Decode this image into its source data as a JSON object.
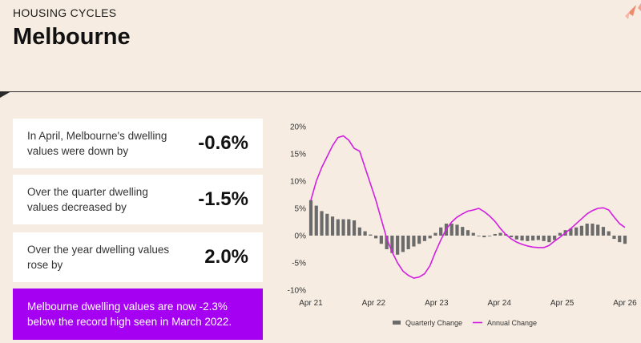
{
  "header": {
    "eyebrow": "HOUSING CYCLES",
    "title": "Melbourne"
  },
  "cards": [
    {
      "label": "In April, Melbourne's dwelling values were down by",
      "value": "-0.6%"
    },
    {
      "label": "Over the quarter dwelling values decreased by",
      "value": "-1.5%"
    },
    {
      "label": "Over the year dwelling values rose by",
      "value": "2.0%"
    }
  ],
  "banner": {
    "text": "Melbourne dwelling values are now -2.3% below the record high seen in March 2022."
  },
  "colors": {
    "background": "#f6ece1",
    "banner": "#a600f2",
    "quarterly": "#6b6b6b",
    "annual": "#d21fe0",
    "deco": "#f08a70"
  },
  "chart_data": {
    "type": "bar",
    "x_tick_labels": [
      "Apr 21",
      "Apr 22",
      "Apr 23",
      "Apr 24",
      "Apr 25",
      "Apr 26"
    ],
    "y_tick_labels": [
      "20%",
      "15%",
      "10%",
      "5%",
      "0%",
      "-5%",
      "-10%"
    ],
    "ylim": [
      -10,
      20
    ],
    "grid": false,
    "legend_position": "bottom",
    "series": [
      {
        "name": "Quarterly Change",
        "type": "bar",
        "values": [
          6.5,
          5.5,
          4.5,
          4.0,
          3.5,
          3.0,
          3.0,
          3.0,
          2.8,
          1.5,
          0.8,
          0.2,
          -0.5,
          -1.5,
          -2.5,
          -3.2,
          -3.5,
          -3.0,
          -2.5,
          -2.0,
          -1.5,
          -1.0,
          -0.5,
          0.5,
          1.5,
          2.2,
          2.2,
          2.0,
          1.6,
          1.0,
          0.5,
          0.0,
          -0.3,
          0.0,
          0.3,
          0.5,
          0.3,
          -0.3,
          -0.7,
          -0.9,
          -1.0,
          -0.9,
          -0.8,
          -1.0,
          -1.2,
          -0.8,
          0.5,
          1.0,
          1.3,
          1.5,
          1.8,
          2.2,
          2.2,
          2.0,
          1.6,
          0.8,
          -0.6,
          -1.2,
          -1.5
        ]
      },
      {
        "name": "Annual Change",
        "type": "line",
        "values": [
          6.5,
          10.0,
          12.5,
          14.5,
          16.5,
          18.0,
          18.3,
          17.5,
          16.0,
          15.5,
          12.5,
          9.5,
          6.5,
          3.0,
          -0.5,
          -3.0,
          -5.0,
          -6.5,
          -7.3,
          -7.8,
          -7.6,
          -7.0,
          -5.5,
          -3.0,
          -0.8,
          1.2,
          2.5,
          3.4,
          4.0,
          4.5,
          4.7,
          5.0,
          4.4,
          3.6,
          2.6,
          1.3,
          0.2,
          -0.6,
          -1.2,
          -1.6,
          -1.9,
          -2.1,
          -2.2,
          -2.2,
          -1.8,
          -1.0,
          -0.3,
          0.5,
          1.3,
          2.2,
          3.1,
          4.0,
          4.6,
          5.0,
          5.1,
          4.7,
          3.4,
          2.2,
          1.5
        ]
      }
    ]
  }
}
